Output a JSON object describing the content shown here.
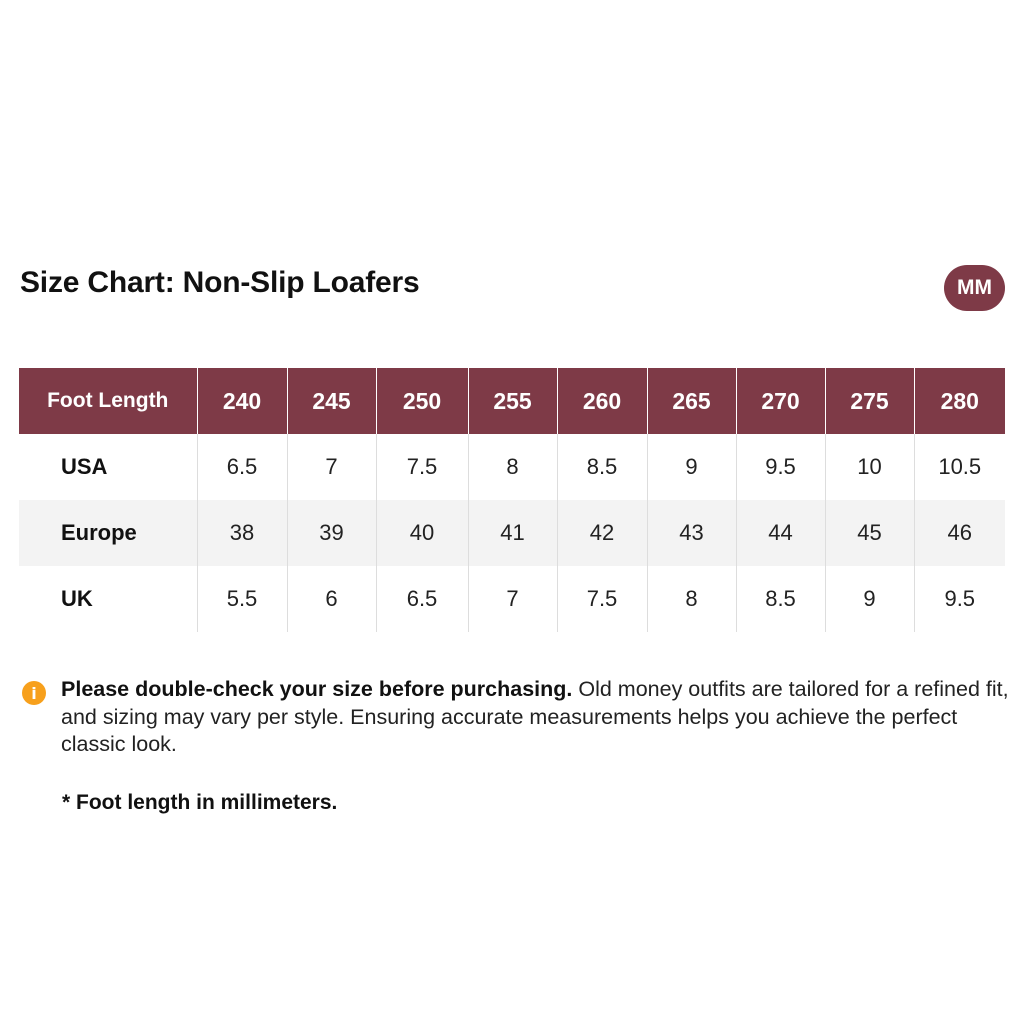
{
  "title": "Size Chart: Non-Slip Loafers",
  "unit_badge": "MM",
  "table": {
    "header": [
      "Foot Length",
      "240",
      "245",
      "250",
      "255",
      "260",
      "265",
      "270",
      "275",
      "280"
    ],
    "rows": [
      {
        "label": "USA",
        "values": [
          "6.5",
          "7",
          "7.5",
          "8",
          "8.5",
          "9",
          "9.5",
          "10",
          "10.5"
        ]
      },
      {
        "label": "Europe",
        "values": [
          "38",
          "39",
          "40",
          "41",
          "42",
          "43",
          "44",
          "45",
          "46"
        ]
      },
      {
        "label": "UK",
        "values": [
          "5.5",
          "6",
          "6.5",
          "7",
          "7.5",
          "8",
          "8.5",
          "9",
          "9.5"
        ]
      }
    ]
  },
  "note": {
    "icon": "info-icon",
    "bold_text": "Please double-check your size before purchasing.",
    "text": " Old money outfits are tailored for a refined fit, and sizing may vary per style. Ensuring accurate measurements helps you achieve the perfect classic look."
  },
  "footnote": "* Foot length in millimeters.",
  "colors": {
    "accent": "#7e3a47",
    "info_icon": "#f7a01c",
    "row_alt": "#f3f3f3"
  }
}
